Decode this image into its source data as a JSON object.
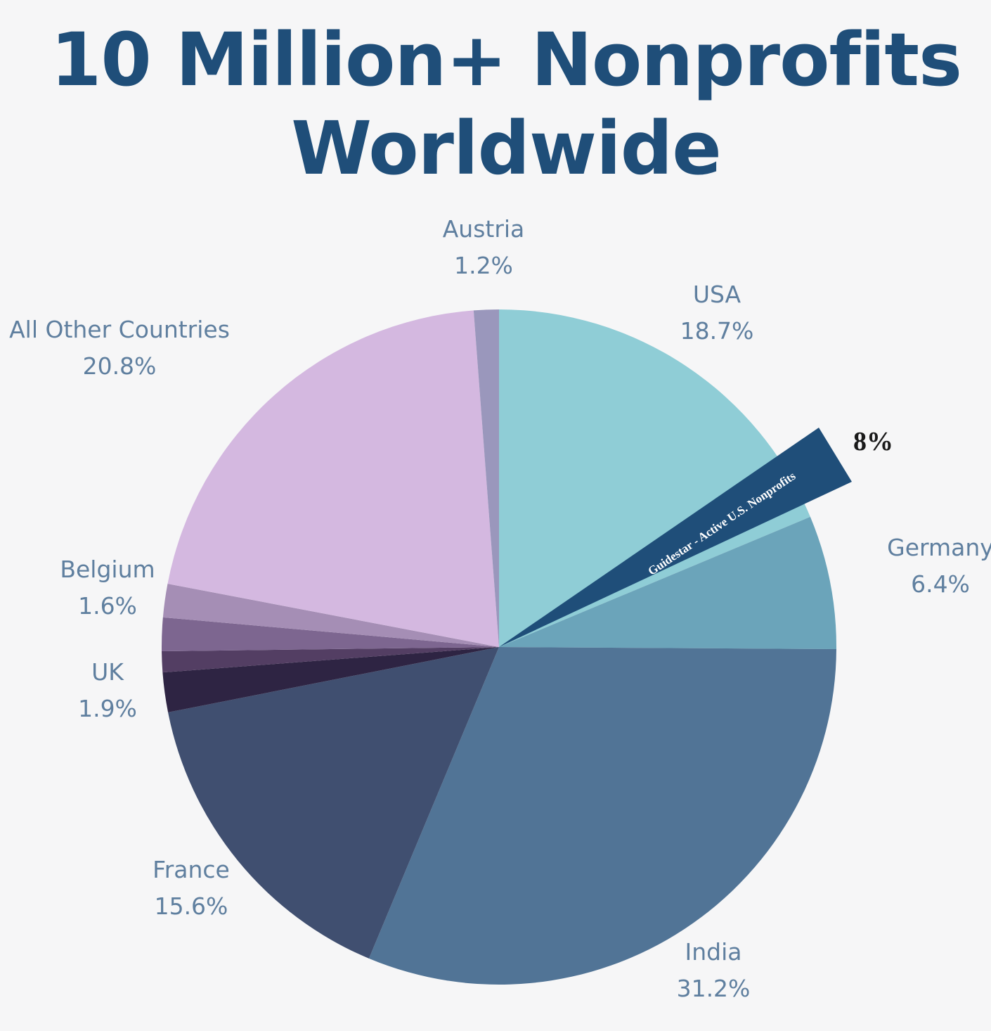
{
  "title_lines": [
    "10 Million+ Nonprofits",
    "Worldwide"
  ],
  "chart_data": {
    "type": "pie",
    "title": "10 Million+ Nonprofits Worldwide",
    "slices": [
      {
        "label": "USA",
        "value": 18.7,
        "display": "18.7%",
        "color": "#8fcdd6"
      },
      {
        "label": "Germany",
        "value": 6.4,
        "display": "6.4%",
        "color": "#6ba4ba"
      },
      {
        "label": "India",
        "value": 31.2,
        "display": "31.2%",
        "color": "#517496"
      },
      {
        "label": "France",
        "value": 15.6,
        "display": "15.6%",
        "color": "#404f70"
      },
      {
        "label": "UK",
        "value": 1.9,
        "display": "1.9%",
        "color": "#2e2443"
      },
      {
        "label": "",
        "value": 1.0,
        "display": "",
        "color": "#533e63"
      },
      {
        "label": "",
        "value": 1.6,
        "display": "",
        "color": "#7d6690"
      },
      {
        "label": "Belgium",
        "value": 1.6,
        "display": "1.6%",
        "color": "#a58eb5"
      },
      {
        "label": "All Other Countries",
        "value": 20.8,
        "display": "20.8%",
        "color": "#d4b8e0"
      },
      {
        "label": "Austria",
        "value": 1.2,
        "display": "1.2%",
        "color": "#9a97bc"
      }
    ],
    "callout": {
      "text": "Guidestar - Active U.S. Nonprofits",
      "value": 8,
      "display": "8%",
      "color": "#1f4e79"
    }
  }
}
